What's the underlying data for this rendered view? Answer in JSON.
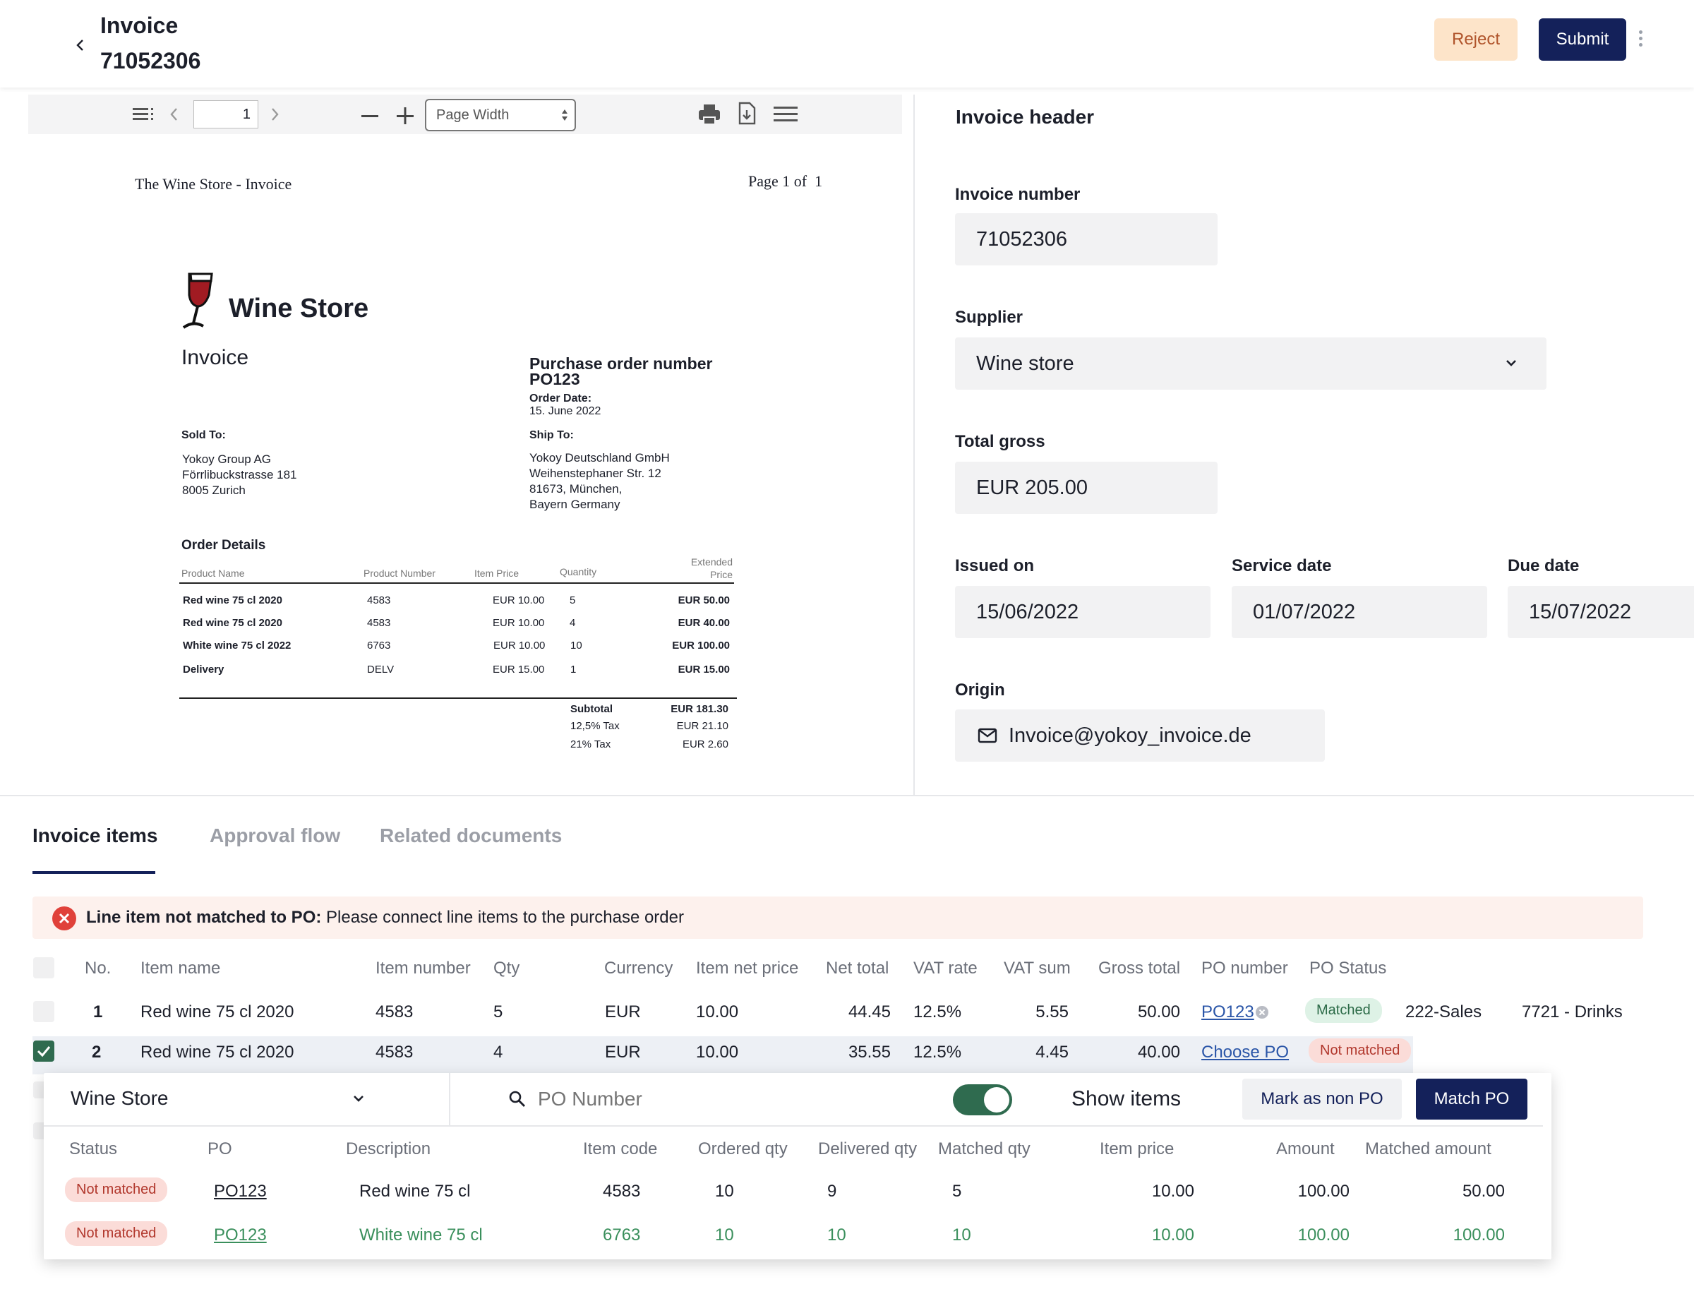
{
  "header": {
    "title_line1": "Invoice",
    "title_line2": "71052306",
    "reject_label": "Reject",
    "submit_label": "Submit"
  },
  "pdf_toolbar": {
    "page_value": "1",
    "zoom": "Page Width"
  },
  "pdf": {
    "doc_title": "The Wine Store - Invoice",
    "page_info": "Page 1 of  1",
    "brand": "Wine Store",
    "heading": "Invoice",
    "po_heading": "Purchase order number",
    "po_number": "PO123",
    "order_date_label": "Order Date:",
    "order_date": "15. June 2022",
    "sold_to_label": "Sold To:",
    "sold_to": [
      "Yokoy Group AG",
      "Förrlibuckstrasse 181",
      "8005 Zurich"
    ],
    "ship_to_label": "Ship To:",
    "ship_to": [
      "Yokoy Deutschland GmbH",
      "Weihenstephaner Str. 12",
      "81673, München,",
      "Bayern Germany"
    ],
    "order_details": "Order Details",
    "cols": [
      "Product Name",
      "Product Number",
      "Item Price",
      "Quantity",
      "Extended",
      "Price"
    ],
    "rows": [
      [
        "Red wine 75 cl 2020",
        "4583",
        "EUR 10.00",
        "5",
        "EUR 50.00"
      ],
      [
        "Red wine 75 cl 2020",
        "4583",
        "EUR 10.00",
        "4",
        "EUR 40.00"
      ],
      [
        "White wine 75 cl 2022",
        "6763",
        "EUR 10.00",
        "10",
        "EUR 100.00"
      ],
      [
        "Delivery",
        "DELV",
        "EUR 15.00",
        "1",
        "EUR 15.00"
      ]
    ],
    "totals": [
      [
        "Subtotal",
        "EUR 181.30"
      ],
      [
        "12,5% Tax",
        "EUR 21.10"
      ],
      [
        "21% Tax",
        "EUR 2.60"
      ]
    ]
  },
  "form": {
    "title": "Invoice header",
    "invoice_number_label": "Invoice number",
    "invoice_number": "71052306",
    "supplier_label": "Supplier",
    "supplier": "Wine store",
    "total_gross_label": "Total gross",
    "total_gross": "EUR 205.00",
    "issued_on_label": "Issued on",
    "issued_on": "15/06/2022",
    "service_date_label": "Service date",
    "service_date": "01/07/2022",
    "due_date_label": "Due date",
    "due_date": "15/07/2022",
    "origin_label": "Origin",
    "origin": "Invoice@yokoy_invoice.de"
  },
  "tabs": [
    "Invoice items",
    "Approval flow",
    "Related documents"
  ],
  "banner": {
    "bold": "Line item not matched to PO:",
    "text": " Please connect line items to the purchase order"
  },
  "items_table": {
    "headers": [
      "No.",
      "Item name",
      "Item number",
      "Qty",
      "Currency",
      "Item net price",
      "Net total",
      "VAT rate",
      "VAT sum",
      "Gross total",
      "PO number",
      "PO Status"
    ],
    "rows": [
      {
        "no": "1",
        "name": "Red wine 75 cl 2020",
        "number": "4583",
        "qty": "5",
        "currency": "EUR",
        "net_price": "10.00",
        "net_total": "44.45",
        "vat_rate": "12.5%",
        "vat_sum": "5.55",
        "gross": "50.00",
        "po": "PO123",
        "status": "Matched",
        "cost_center": "222-Sales",
        "account": "7721 - Drinks"
      },
      {
        "no": "2",
        "name": "Red wine 75 cl 2020",
        "number": "4583",
        "qty": "4",
        "currency": "EUR",
        "net_price": "10.00",
        "net_total": "35.55",
        "vat_rate": "12.5%",
        "vat_sum": "4.45",
        "gross": "40.00",
        "po": "Choose PO",
        "status": "Not matched"
      }
    ]
  },
  "popup": {
    "supplier": "Wine Store",
    "search_placeholder": "PO Number",
    "show_items_label": "Show items",
    "mark_non_po": "Mark as non PO",
    "match_po": "Match PO",
    "headers": [
      "Status",
      "PO",
      "Description",
      "Item code",
      "Ordered qty",
      "Delivered qty",
      "Matched qty",
      "Item price",
      "Amount",
      "Matched amount"
    ],
    "rows": [
      {
        "status": "Not matched",
        "po": "PO123",
        "desc": "Red wine 75 cl",
        "code": "4583",
        "ordered": "10",
        "delivered": "9",
        "matched": "5",
        "price": "10.00",
        "amount": "100.00",
        "matched_amount": "50.00"
      },
      {
        "status": "Not matched",
        "po": "PO123",
        "desc": "White wine 75 cl",
        "code": "6763",
        "ordered": "10",
        "delivered": "10",
        "matched": "10",
        "price": "10.00",
        "amount": "100.00",
        "matched_amount": "100.00"
      }
    ]
  },
  "colors": {
    "primary": "#14215a",
    "reject_bg": "#fde4c9",
    "error": "#e0413a",
    "success": "#2f6b4f"
  }
}
